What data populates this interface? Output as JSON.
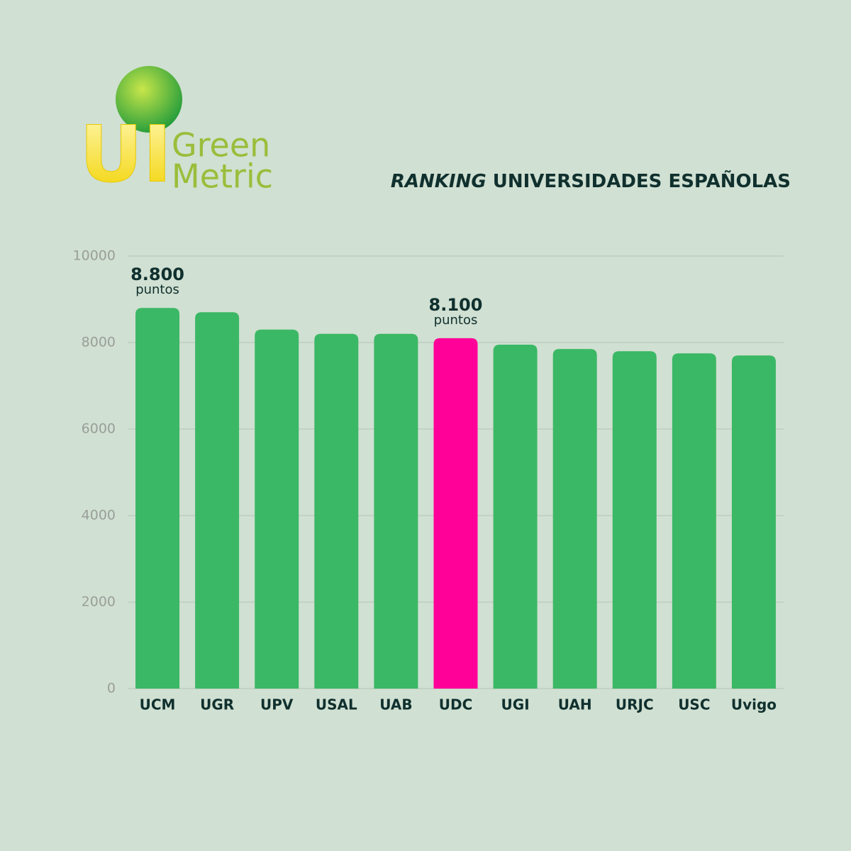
{
  "logo": {
    "mark": "UI",
    "lines": [
      "Green",
      "Metric"
    ]
  },
  "chart_data": {
    "type": "bar",
    "title_parts": [
      "RANKING",
      "UNIVERSIDADES ESPAÑOLAS"
    ],
    "categories": [
      "UCM",
      "UGR",
      "UPV",
      "USAL",
      "UAB",
      "UDC",
      "UGI",
      "UAH",
      "URJC",
      "USC",
      "Uvigo"
    ],
    "values": [
      8800,
      8700,
      8300,
      8200,
      8200,
      8100,
      7950,
      7850,
      7800,
      7750,
      7700
    ],
    "value_labels": [
      "8.800",
      null,
      null,
      null,
      null,
      "8.100",
      null,
      null,
      null,
      null,
      null
    ],
    "value_label_unit": "puntos",
    "colors": [
      "#3bb865",
      "#3bb865",
      "#3bb865",
      "#3bb865",
      "#3bb865",
      "#ff0099",
      "#3bb865",
      "#3bb865",
      "#3bb865",
      "#3bb865",
      "#3bb865"
    ],
    "ylim": [
      0,
      10000
    ],
    "yticks": [
      0,
      2000,
      4000,
      6000,
      8000,
      10000
    ],
    "grid": true
  }
}
